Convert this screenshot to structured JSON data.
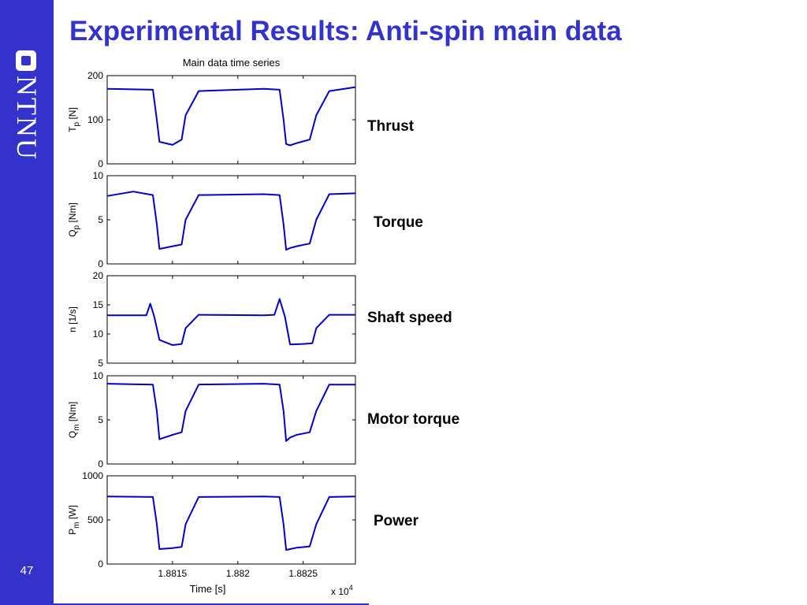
{
  "slide": {
    "title": "Experimental Results: Anti-spin main data",
    "page_number": "47",
    "logo_text": "NTNU",
    "accent_color": "#3333cc",
    "labels": [
      "Thrust",
      "Torque",
      "Shaft speed",
      "Motor torque",
      "Power"
    ]
  },
  "chart_data": {
    "type": "line",
    "title": "Main data time series",
    "xlabel": "Time [s]",
    "x_multiplier": "x 10",
    "x_multiplier_exp": "4",
    "xlim": [
      1.881,
      1.8829
    ],
    "xticks": [
      1.8815,
      1.882,
      1.8825
    ],
    "xtick_labels": [
      "1.8815",
      "1.882",
      "1.8825"
    ],
    "line_color": "#0000cc",
    "grid": false,
    "panels": [
      {
        "ylabel": "T",
        "ylabel_sub": "p",
        "ylabel_unit": " [N]",
        "ylim": [
          0,
          200
        ],
        "yticks": [
          0,
          100,
          200
        ],
        "series": [
          {
            "x": [
              1.881,
              1.88135,
              1.88138,
              1.8814,
              1.8815,
              1.88157,
              1.8816,
              1.8817,
              1.8822,
              1.88232,
              1.88235,
              1.88237,
              1.8824,
              1.88245,
              1.88255,
              1.8826,
              1.8827,
              1.8829
            ],
            "y": [
              170,
              168,
              100,
              50,
              43,
              55,
              110,
              165,
              170,
              168,
              100,
              45,
              42,
              47,
              55,
              110,
              165,
              174
            ]
          }
        ]
      },
      {
        "ylabel": "Q",
        "ylabel_sub": "p",
        "ylabel_unit": " [Nm]",
        "ylim": [
          0,
          10
        ],
        "yticks": [
          0,
          5,
          10
        ],
        "series": [
          {
            "x": [
              1.881,
              1.8812,
              1.88135,
              1.88138,
              1.8814,
              1.8815,
              1.88157,
              1.8816,
              1.8817,
              1.8822,
              1.88232,
              1.88235,
              1.88237,
              1.8824,
              1.88245,
              1.88255,
              1.8826,
              1.8827,
              1.8829
            ],
            "y": [
              7.7,
              8.2,
              7.8,
              4.5,
              1.7,
              2.0,
              2.2,
              5.0,
              7.8,
              7.9,
              7.8,
              4.5,
              1.6,
              1.8,
              2.0,
              2.3,
              5.0,
              7.9,
              8.0
            ]
          }
        ]
      },
      {
        "ylabel": "n",
        "ylabel_sub": "",
        "ylabel_unit": " [1/s]",
        "ylim": [
          5,
          20
        ],
        "yticks": [
          5,
          10,
          15,
          20
        ],
        "series": [
          {
            "x": [
              1.881,
              1.8813,
              1.88133,
              1.88136,
              1.8814,
              1.8815,
              1.88157,
              1.8816,
              1.8817,
              1.8822,
              1.88228,
              1.88232,
              1.88236,
              1.8824,
              1.8825,
              1.88257,
              1.8826,
              1.8827,
              1.8829
            ],
            "y": [
              13.2,
              13.2,
              15.2,
              13.0,
              9.0,
              8.1,
              8.3,
              11.0,
              13.3,
              13.2,
              13.3,
              16.0,
              13.0,
              8.2,
              8.3,
              8.4,
              11.0,
              13.3,
              13.3
            ]
          }
        ]
      },
      {
        "ylabel": "Q",
        "ylabel_sub": "m",
        "ylabel_unit": " [Nm]",
        "ylim": [
          0,
          10
        ],
        "yticks": [
          0,
          5,
          10
        ],
        "series": [
          {
            "x": [
              1.881,
              1.88135,
              1.88138,
              1.8814,
              1.8815,
              1.88157,
              1.8816,
              1.8817,
              1.8822,
              1.88232,
              1.88235,
              1.88237,
              1.8824,
              1.88245,
              1.88255,
              1.8826,
              1.8827,
              1.8829
            ],
            "y": [
              9.1,
              9.0,
              6.0,
              2.8,
              3.3,
              3.6,
              6.0,
              9.0,
              9.1,
              9.0,
              6.0,
              2.6,
              3.0,
              3.3,
              3.6,
              6.0,
              9.0,
              9.0
            ]
          }
        ]
      },
      {
        "ylabel": "P",
        "ylabel_sub": "m",
        "ylabel_unit": " [W]",
        "ylim": [
          0,
          1000
        ],
        "yticks": [
          0,
          500,
          1000
        ],
        "series": [
          {
            "x": [
              1.881,
              1.88135,
              1.88138,
              1.8814,
              1.8815,
              1.88157,
              1.8816,
              1.8817,
              1.8822,
              1.88232,
              1.88235,
              1.88237,
              1.8824,
              1.88245,
              1.88255,
              1.8826,
              1.8827,
              1.8829
            ],
            "y": [
              765,
              760,
              450,
              170,
              180,
              195,
              450,
              760,
              765,
              760,
              450,
              160,
              170,
              185,
              200,
              450,
              760,
              765
            ]
          }
        ]
      }
    ]
  }
}
